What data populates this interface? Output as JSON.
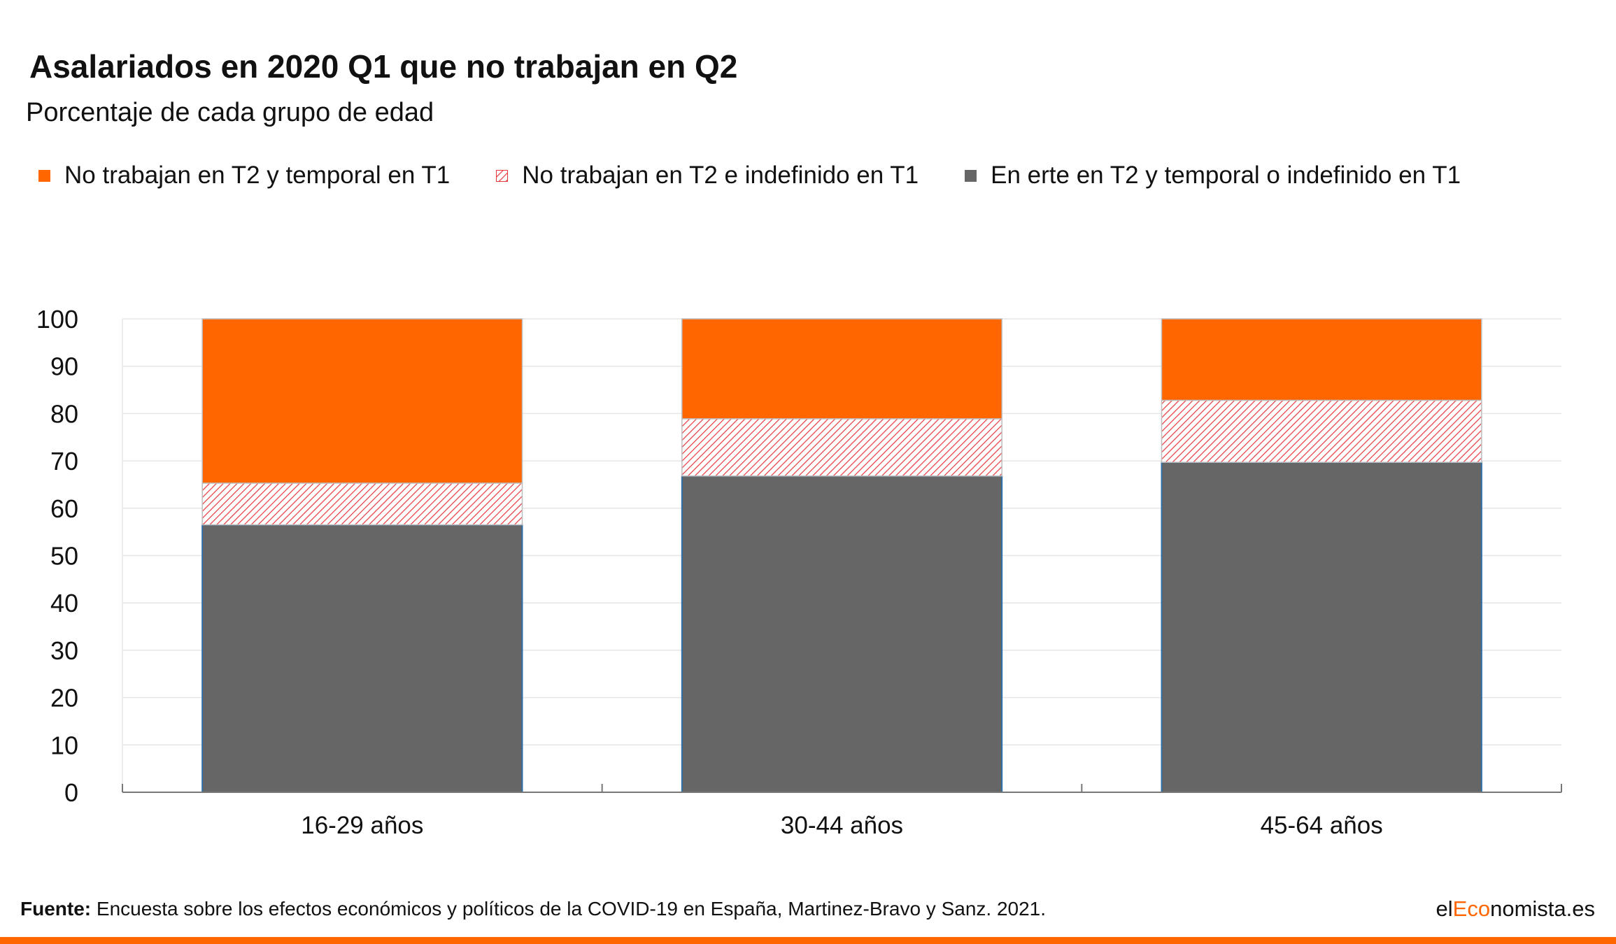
{
  "title": "Asalariados en 2020 Q1 que no trabajan en Q2",
  "subtitle": "Porcentaje de cada grupo de edad",
  "colors": {
    "orange": "#FF6600",
    "hatch": "#E8383D",
    "gray": "#666666",
    "bar_outline": "#2F6FA8",
    "grid": "#E6E6E6",
    "axis": "#777777",
    "brand_accent": "#FF6600"
  },
  "footer": {
    "source_label": "Fuente:",
    "source_text": " Encuesta sobre los efectos económicos y políticos de la COVID-19 en España, Martinez-Bravo y Sanz. 2021.",
    "brand_prefix": "el",
    "brand_accent": "Eco",
    "brand_suffix": "nomista.es"
  },
  "chart_data": {
    "type": "bar",
    "stacked": true,
    "categories": [
      "16-29 años",
      "30-44 años",
      "45-64 años"
    ],
    "series": [
      {
        "name": "En erte en T2 y temporal o indefinido en T1",
        "style": "solid",
        "color": "#666666",
        "values": [
          56.5,
          66.8,
          69.7
        ]
      },
      {
        "name": "No trabajan en T2 e indefinido en T1",
        "style": "hatched",
        "color": "#E8383D",
        "values": [
          8.8,
          12.1,
          13.1
        ]
      },
      {
        "name": "No trabajan en T2 y temporal en T1",
        "style": "solid",
        "color": "#FF6600",
        "values": [
          34.7,
          21.1,
          17.2
        ]
      }
    ],
    "legend_order": [
      "No trabajan en T2 y temporal en T1",
      "No trabajan en T2 e indefinido en T1",
      "En erte en T2 y temporal o indefinido en T1"
    ],
    "legend_placement": "top-left",
    "ylim": [
      0,
      100
    ],
    "yticks": [
      0,
      10,
      20,
      30,
      40,
      50,
      60,
      70,
      80,
      90,
      100
    ],
    "xlabel": "",
    "ylabel": "",
    "grid": true
  }
}
